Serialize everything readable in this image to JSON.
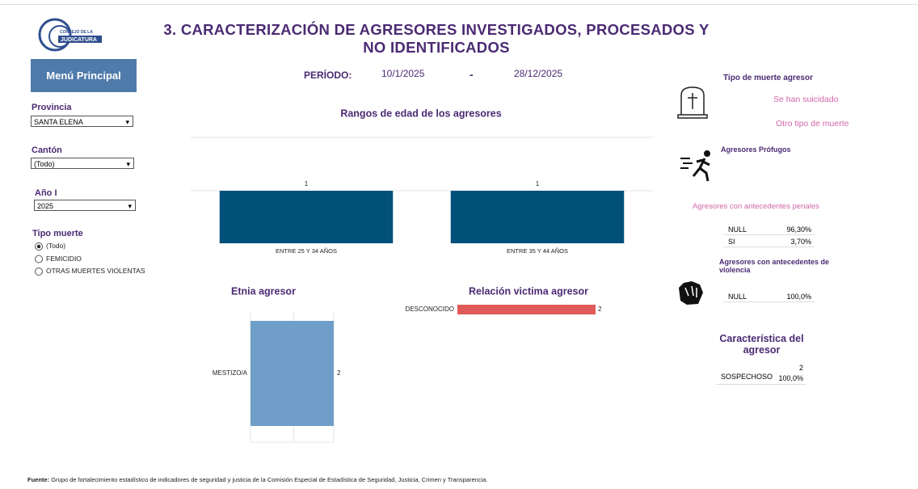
{
  "header": {
    "logo": [
      "CONSEJO DE LA",
      "JUDICATURA"
    ],
    "title": "3. CARACTERIZACIÓN DE AGRESORES INVESTIGADOS, PROCESADOS Y NO IDENTIFICADOS",
    "period_label": "PERÍODO:",
    "start": "10/1/2025",
    "separator": "-",
    "end": "28/12/2025"
  },
  "menu": "Menú Principal",
  "filters": [
    {
      "label": "Provincia",
      "value": "SANTA ELENA"
    },
    {
      "label": "Cantón",
      "value": "(Todo)"
    },
    {
      "label": "Año I",
      "value": "2025"
    }
  ],
  "tipo_muerte": {
    "label": "Tipo muerte",
    "options": [
      "(Todo)",
      "FEMICIDIO",
      "OTRAS MUERTES VIOLENTAS"
    ],
    "selected": 0
  },
  "chart_data": [
    {
      "type": "bar",
      "title": "Rangos de edad de los agresores",
      "categories": [
        "ENTRE 25 Y 34 AÑOS",
        "ENTRE 35 Y 44 AÑOS"
      ],
      "values": [
        1,
        1
      ],
      "color": "#00507a"
    },
    {
      "type": "bar",
      "title": "Etnia agresor",
      "categories": [
        "MESTIZO/A"
      ],
      "values": [
        2
      ],
      "color": "#6f9fc8"
    },
    {
      "type": "hbar",
      "title": "Relación victima agresor",
      "categories": [
        "DESCONOCIDO"
      ],
      "values": [
        2
      ],
      "color": "#e05a5a"
    }
  ],
  "right": {
    "tipo_muerte_title": "Tipo de muerte agresor",
    "suicidado": "Se han suicidado",
    "otro": "Otro tipo de muerte",
    "profugos": "Agresores Prófugos",
    "penales": {
      "title": "Agresores con antecedentes penales",
      "rows": [
        [
          "NULL",
          "96,30%"
        ],
        [
          "SI",
          "3,70%"
        ]
      ]
    },
    "violencia": {
      "title": "Agresores con antecedentes de violencia",
      "rows": [
        [
          "NULL",
          "100,0%"
        ]
      ]
    },
    "caracteristica": {
      "title": "Característica del agresor",
      "rows": [
        [
          "SOSPECHOSO",
          "2",
          "100,0%"
        ]
      ]
    }
  },
  "footer": {
    "label": "Fuente:",
    "text": "Grupo de fortalecimiento estadístico de indicadores de seguridad y justicia de la Comisión Especial de Estadística de Seguridad, Justicia, Crimen y Transparencia."
  }
}
